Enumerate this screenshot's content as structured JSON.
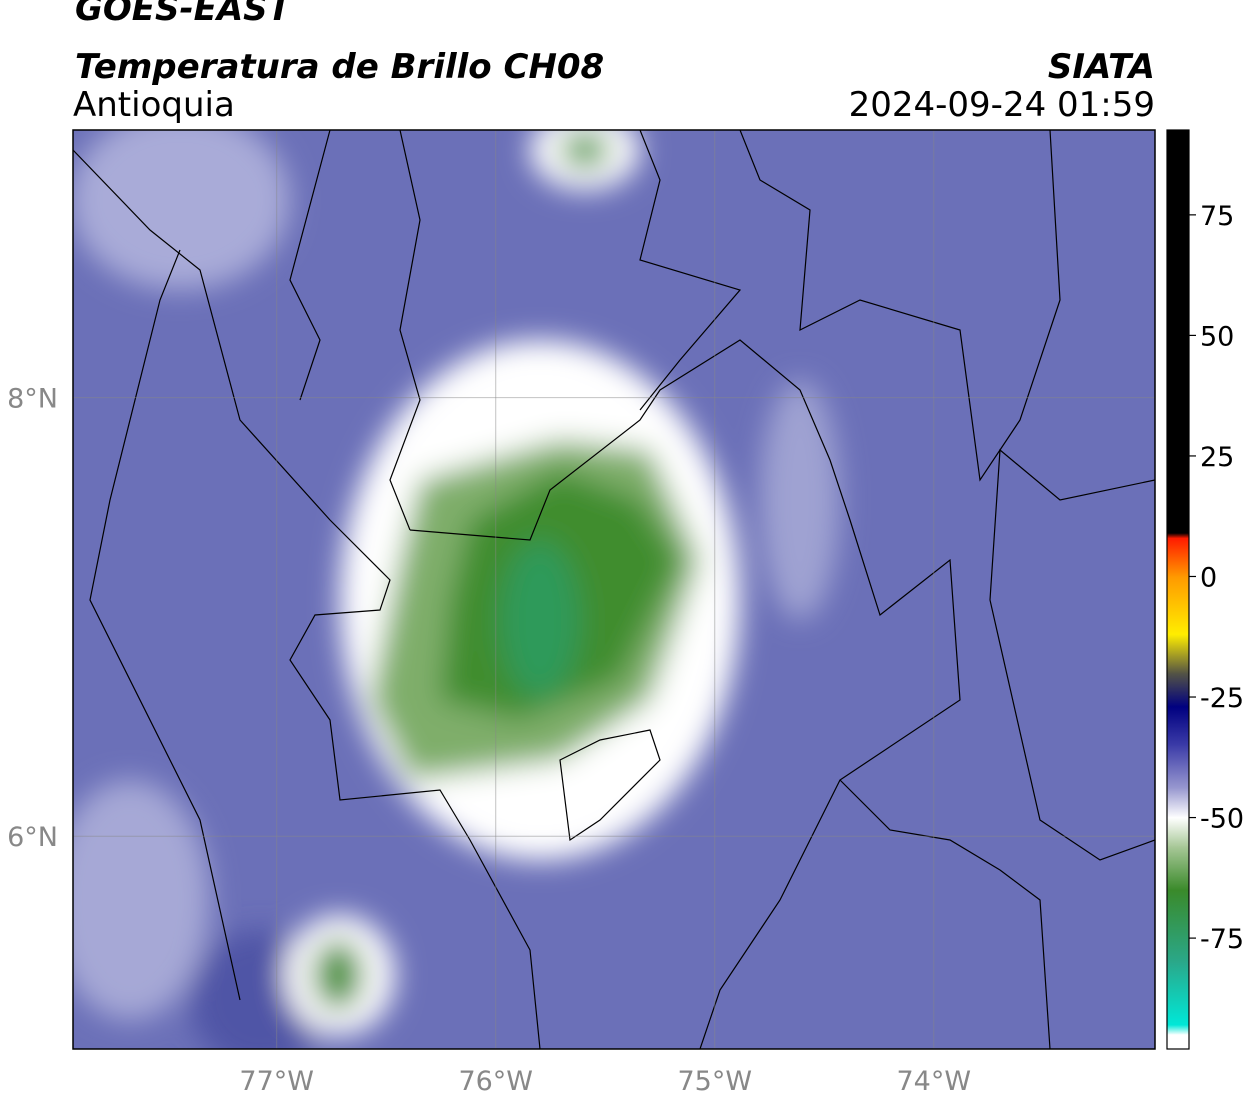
{
  "header": {
    "title": "GOES-EAST",
    "subtitle": "Temperatura de Brillo CH08",
    "region": "Antioquia",
    "source": "SIATA",
    "datetime": "2024-09-24 01:59"
  },
  "map": {
    "lonlim": [
      -77.93,
      -72.99
    ],
    "latlim": [
      5.03,
      9.22
    ],
    "xticks": [
      {
        "value": -77,
        "label": "77°W"
      },
      {
        "value": -76,
        "label": "76°W"
      },
      {
        "value": -75,
        "label": "75°W"
      },
      {
        "value": -74,
        "label": "74°W"
      }
    ],
    "yticks": [
      {
        "value": 8,
        "label": "8°N"
      },
      {
        "value": 6,
        "label": "6°N"
      }
    ],
    "grid": true
  },
  "colorbar": {
    "lim": [
      -98,
      92.6
    ],
    "ticks": [
      75,
      50,
      25,
      0,
      -25,
      -50,
      -75
    ],
    "stops": [
      {
        "value": 92.6,
        "color": "#000000"
      },
      {
        "value": 9,
        "color": "#000000"
      },
      {
        "value": 8,
        "color": "#ff1a00"
      },
      {
        "value": 0,
        "color": "#ff9900"
      },
      {
        "value": -12,
        "color": "#ffee00"
      },
      {
        "value": -20,
        "color": "#555544"
      },
      {
        "value": -27,
        "color": "#000080"
      },
      {
        "value": -35,
        "color": "#3c3ca8"
      },
      {
        "value": -44,
        "color": "#9a9ad0"
      },
      {
        "value": -50,
        "color": "#ffffff"
      },
      {
        "value": -56,
        "color": "#a8c898"
      },
      {
        "value": -65,
        "color": "#3a8a2a"
      },
      {
        "value": -80,
        "color": "#2aa88a"
      },
      {
        "value": -93,
        "color": "#00e8d8"
      },
      {
        "value": -95,
        "color": "#ffffff"
      },
      {
        "value": -98,
        "color": "#ffffff"
      }
    ]
  }
}
